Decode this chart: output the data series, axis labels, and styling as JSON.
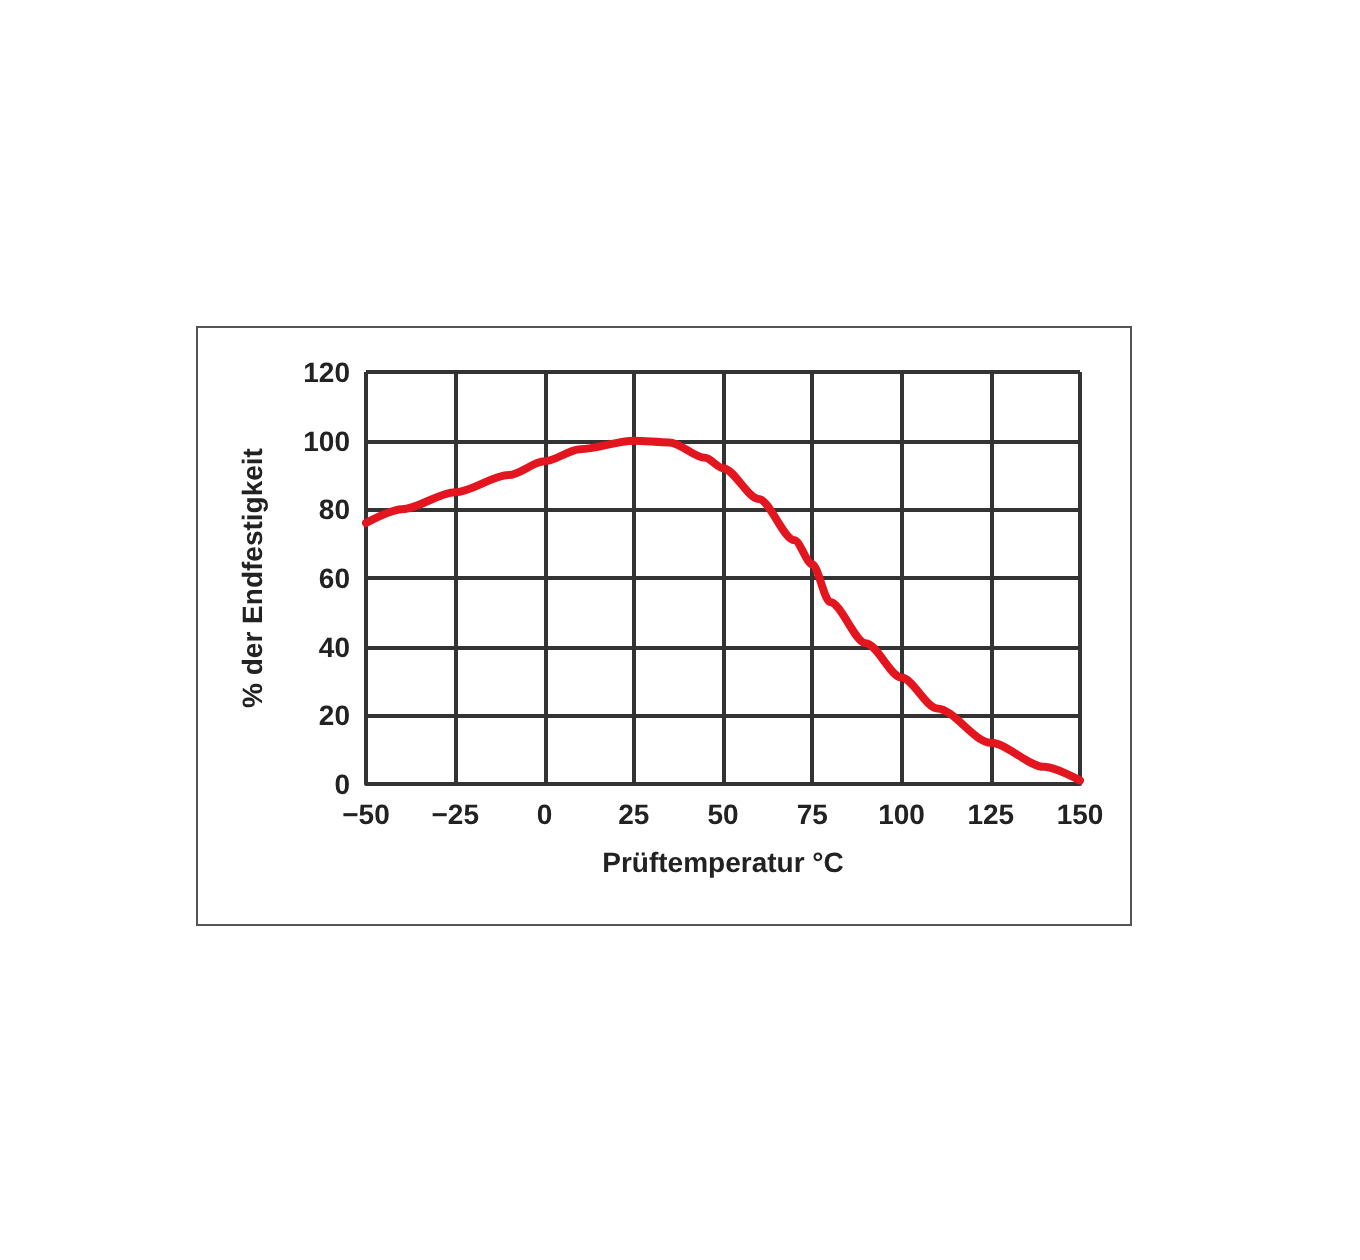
{
  "chart_data": {
    "type": "line",
    "xlabel": "Prüftemperatur °C",
    "ylabel": "% der Endfestigkeit",
    "x": [
      -50,
      -40,
      -25,
      -10,
      0,
      10,
      25,
      35,
      45,
      50,
      60,
      70,
      75,
      80,
      90,
      100,
      110,
      125,
      140,
      150
    ],
    "series": [
      {
        "color": "#e3151f",
        "values": [
          76,
          80,
          85,
          90,
          94,
          97.5,
          100,
          99.5,
          95,
          92,
          83,
          71,
          64,
          53,
          41,
          31,
          22,
          12,
          5,
          1
        ]
      }
    ],
    "xlim": [
      -50,
      150
    ],
    "xticks": [
      -50,
      -25,
      0,
      25,
      50,
      75,
      100,
      125,
      150
    ],
    "ylim": [
      0,
      120
    ],
    "yticks": [
      0,
      20,
      40,
      60,
      80,
      100,
      120
    ],
    "grid": true,
    "marker": "none",
    "line_style": "solid"
  }
}
